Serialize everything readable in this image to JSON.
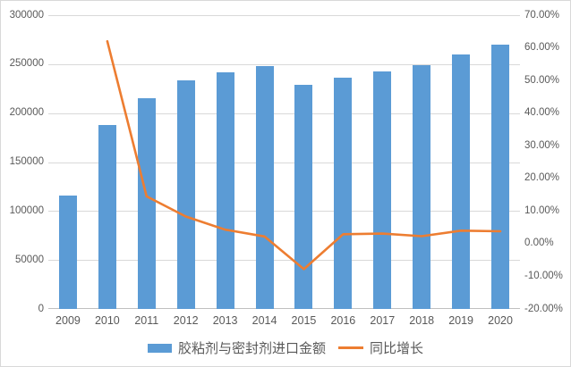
{
  "chart_data": {
    "type": "combo",
    "title": "",
    "categories": [
      "2009",
      "2010",
      "2011",
      "2012",
      "2013",
      "2014",
      "2015",
      "2016",
      "2017",
      "2018",
      "2019",
      "2020"
    ],
    "series": [
      {
        "name": "胶粘剂与密封剂进口金额",
        "type": "bar",
        "axis": "left",
        "color": "#5B9BD5",
        "values": [
          116000,
          188000,
          215000,
          233000,
          242000,
          248000,
          229000,
          236000,
          243000,
          249000,
          260000,
          270000
        ]
      },
      {
        "name": "同比增长",
        "type": "line",
        "axis": "right",
        "color": "#ED7D31",
        "values": [
          null,
          62.0,
          14.5,
          8.3,
          4.3,
          2.2,
          -7.8,
          2.9,
          3.1,
          2.3,
          4.0,
          3.8
        ]
      }
    ],
    "left_axis": {
      "min": 0,
      "max": 300000,
      "step": 50000,
      "tick_labels": [
        "0",
        "50000",
        "100000",
        "150000",
        "200000",
        "250000",
        "300000"
      ]
    },
    "right_axis": {
      "min": -20,
      "max": 70,
      "step": 10,
      "tick_labels": [
        "-20.00%",
        "-10.00%",
        "0.00%",
        "10.00%",
        "20.00%",
        "30.00%",
        "40.00%",
        "50.00%",
        "60.00%",
        "70.00%"
      ]
    },
    "grid": true,
    "legend_position": "bottom",
    "colors": {
      "gridline": "#D9D9D9",
      "axis_line": "#BFBFBF",
      "text": "#595959",
      "background": "#FFFFFF",
      "border": "#D9D9D9"
    }
  }
}
